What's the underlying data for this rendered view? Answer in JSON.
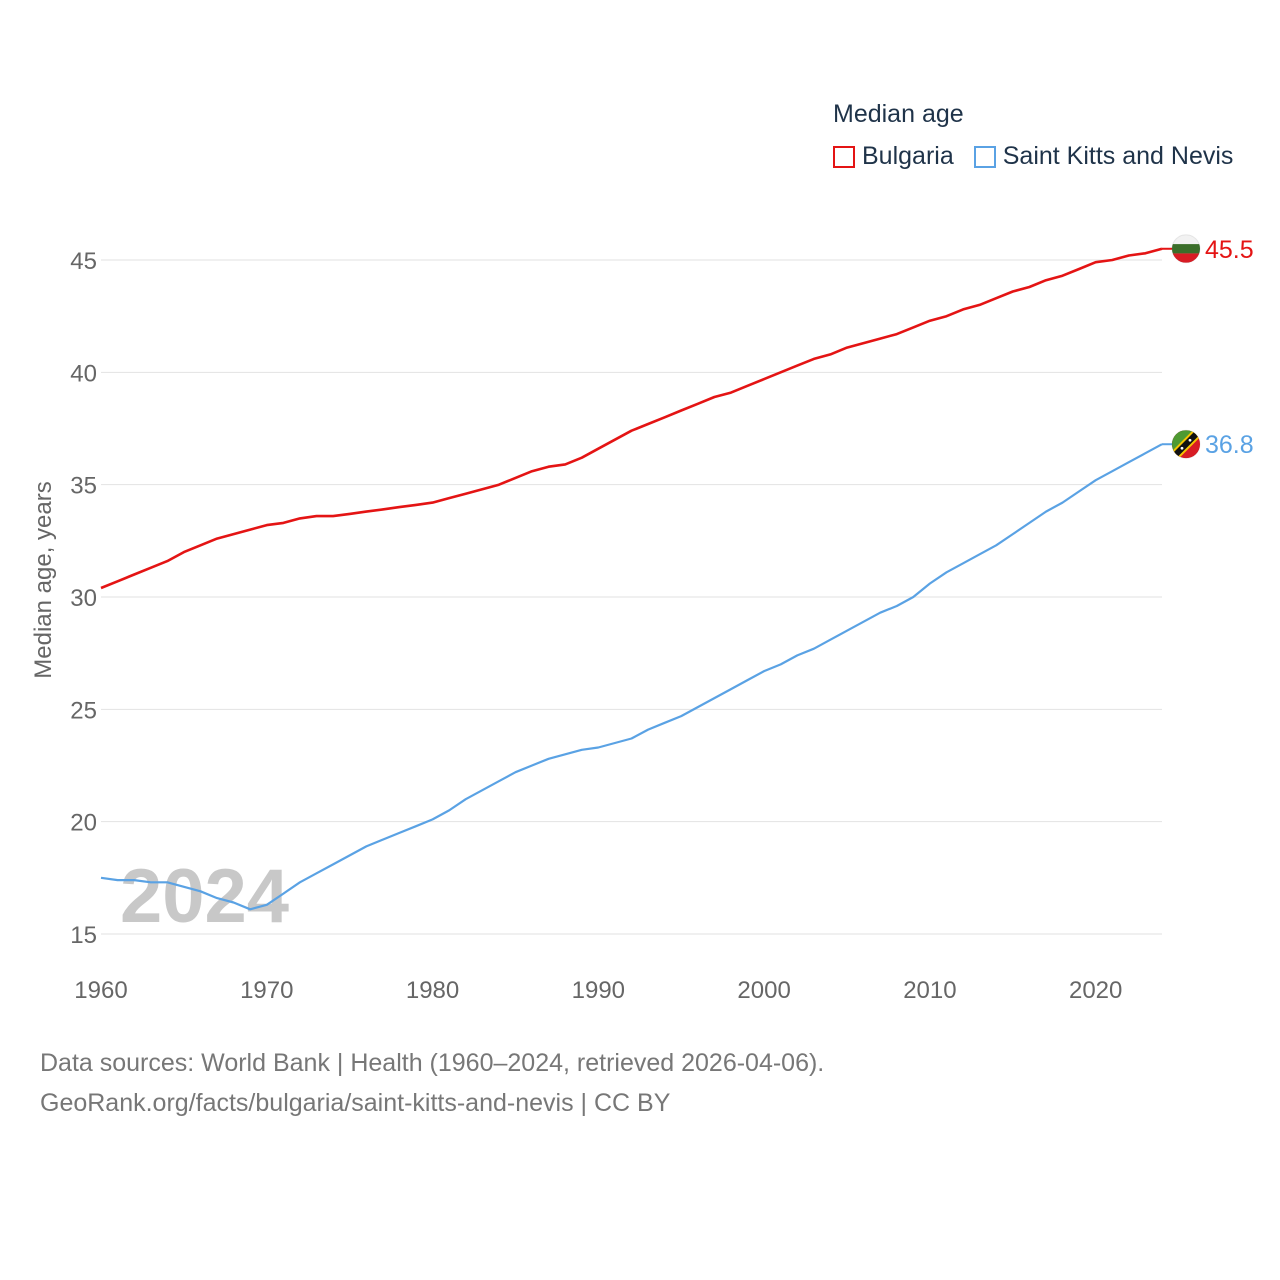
{
  "legend": {
    "title": "Median age",
    "items": [
      {
        "name": "Bulgaria",
        "color": "#e41414"
      },
      {
        "name": "Saint Kitts and Nevis",
        "color": "#5aa2e4"
      }
    ]
  },
  "footer": {
    "line1": "Data sources: World Bank | Health (1960–2024, retrieved 2026-04-06).",
    "line2": "GeoRank.org/facts/bulgaria/saint-kitts-and-nevis | CC BY"
  },
  "chart_data": {
    "type": "line",
    "title": "Median age",
    "xlabel": "",
    "ylabel": "Median age, years",
    "xlim": [
      1960,
      2024
    ],
    "ylim": [
      15,
      45
    ],
    "xticks": [
      1960,
      1970,
      1980,
      1990,
      2000,
      2010,
      2020
    ],
    "yticks": [
      15,
      20,
      25,
      30,
      35,
      40,
      45
    ],
    "grid": true,
    "watermark_year": "2024",
    "legend_position": "top-right",
    "x": [
      1960,
      1961,
      1962,
      1963,
      1964,
      1965,
      1966,
      1967,
      1968,
      1969,
      1970,
      1971,
      1972,
      1973,
      1974,
      1975,
      1976,
      1977,
      1978,
      1979,
      1980,
      1981,
      1982,
      1983,
      1984,
      1985,
      1986,
      1987,
      1988,
      1989,
      1990,
      1991,
      1992,
      1993,
      1994,
      1995,
      1996,
      1997,
      1998,
      1999,
      2000,
      2001,
      2002,
      2003,
      2004,
      2005,
      2006,
      2007,
      2008,
      2009,
      2010,
      2011,
      2012,
      2013,
      2014,
      2015,
      2016,
      2017,
      2018,
      2019,
      2020,
      2021,
      2022,
      2023,
      2024
    ],
    "series": [
      {
        "name": "Bulgaria",
        "color": "#e41414",
        "end_label": "45.5",
        "values": [
          30.4,
          30.7,
          31.0,
          31.3,
          31.6,
          32.0,
          32.3,
          32.6,
          32.8,
          33.0,
          33.2,
          33.3,
          33.5,
          33.6,
          33.6,
          33.7,
          33.8,
          33.9,
          34.0,
          34.1,
          34.2,
          34.4,
          34.6,
          34.8,
          35.0,
          35.3,
          35.6,
          35.8,
          35.9,
          36.2,
          36.6,
          37.0,
          37.4,
          37.7,
          38.0,
          38.3,
          38.6,
          38.9,
          39.1,
          39.4,
          39.7,
          40.0,
          40.3,
          40.6,
          40.8,
          41.1,
          41.3,
          41.5,
          41.7,
          42.0,
          42.3,
          42.5,
          42.8,
          43.0,
          43.3,
          43.6,
          43.8,
          44.1,
          44.3,
          44.6,
          44.9,
          45.0,
          45.2,
          45.3,
          45.5
        ]
      },
      {
        "name": "Saint Kitts and Nevis",
        "color": "#5aa2e4",
        "end_label": "36.8",
        "values": [
          17.5,
          17.4,
          17.4,
          17.3,
          17.3,
          17.1,
          16.9,
          16.6,
          16.4,
          16.1,
          16.3,
          16.8,
          17.3,
          17.7,
          18.1,
          18.5,
          18.9,
          19.2,
          19.5,
          19.8,
          20.1,
          20.5,
          21.0,
          21.4,
          21.8,
          22.2,
          22.5,
          22.8,
          23.0,
          23.2,
          23.3,
          23.5,
          23.7,
          24.1,
          24.4,
          24.7,
          25.1,
          25.5,
          25.9,
          26.3,
          26.7,
          27.0,
          27.4,
          27.7,
          28.1,
          28.5,
          28.9,
          29.3,
          29.6,
          30.0,
          30.6,
          31.1,
          31.5,
          31.9,
          32.3,
          32.8,
          33.3,
          33.8,
          34.2,
          34.7,
          35.2,
          35.6,
          36.0,
          36.4,
          36.8
        ]
      }
    ]
  }
}
